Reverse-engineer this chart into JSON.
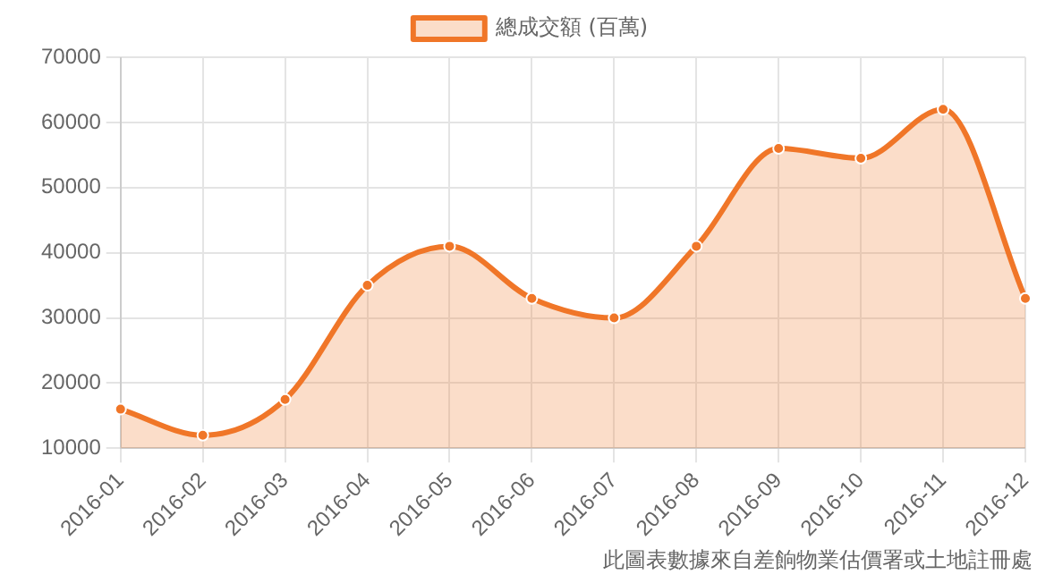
{
  "chart_data": {
    "type": "area",
    "categories": [
      "2016-01",
      "2016-02",
      "2016-03",
      "2016-04",
      "2016-05",
      "2016-06",
      "2016-07",
      "2016-08",
      "2016-09",
      "2016-10",
      "2016-11",
      "2016-12"
    ],
    "series": [
      {
        "name": "總成交額 (百萬)",
        "color": "#f07628",
        "values": [
          16000,
          12000,
          17500,
          35000,
          41000,
          33000,
          30000,
          41000,
          56000,
          54500,
          62000,
          33000
        ]
      }
    ],
    "ylim": [
      10000,
      70000
    ],
    "yticks": [
      10000,
      20000,
      30000,
      40000,
      50000,
      60000,
      70000
    ],
    "grid": true,
    "legend": "top",
    "marker": "circle",
    "annotations": [
      "此圖表數據來自差餉物業估價署或土地註冊處"
    ]
  }
}
